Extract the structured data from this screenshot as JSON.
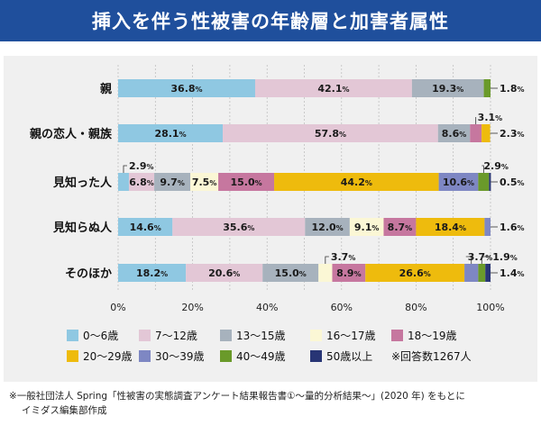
{
  "title": "挿入を伴う性被害の年齢層と加害者属性",
  "colors": {
    "title_bg": "#1f4f9c",
    "panel_bg": "#f0f0f0",
    "series": [
      "#8fc8e2",
      "#e3c7d6",
      "#a7b2bd",
      "#fbf7d5",
      "#c6779f",
      "#eebb0d",
      "#7e87c3",
      "#6a9a2a",
      "#283575"
    ]
  },
  "notes": [
    "※一般社団法人 Spring「性被害の実態調査アンケート結果報告書①〜量的分析結果〜」(2020 年) をもとに",
    "イミダス編集部作成"
  ],
  "legend_note": "※回答数1267人",
  "chart_data": {
    "type": "bar",
    "orientation": "horizontal",
    "stacked": true,
    "categories": [
      "親",
      "親の恋人・親族",
      "見知った人",
      "見知らぬ人",
      "そのほか"
    ],
    "series": [
      {
        "name": "0〜6歳",
        "values": [
          36.8,
          28.1,
          2.9,
          14.6,
          18.2
        ]
      },
      {
        "name": "7〜12歳",
        "values": [
          42.1,
          57.8,
          6.8,
          35.6,
          20.6
        ]
      },
      {
        "name": "13〜15歳",
        "values": [
          19.3,
          8.6,
          9.7,
          12.0,
          15.0
        ]
      },
      {
        "name": "16〜17歳",
        "values": [
          0,
          0,
          7.5,
          9.1,
          3.7
        ]
      },
      {
        "name": "18〜19歳",
        "values": [
          0,
          3.1,
          15.0,
          8.7,
          8.9
        ]
      },
      {
        "name": "20〜29歳",
        "values": [
          0,
          2.3,
          44.2,
          18.4,
          26.6
        ]
      },
      {
        "name": "30〜39歳",
        "values": [
          0,
          0,
          10.6,
          1.6,
          3.7
        ]
      },
      {
        "name": "40〜49歳",
        "values": [
          1.8,
          0,
          2.9,
          0,
          1.9
        ]
      },
      {
        "name": "50歳以上",
        "values": [
          0,
          0,
          0.5,
          0,
          1.4
        ]
      }
    ],
    "x_ticks": [
      "0%",
      "20%",
      "40%",
      "60%",
      "80%",
      "100%"
    ],
    "xlim": [
      0,
      100
    ],
    "grid": true,
    "legend_position": "bottom",
    "value_unit": "%"
  }
}
